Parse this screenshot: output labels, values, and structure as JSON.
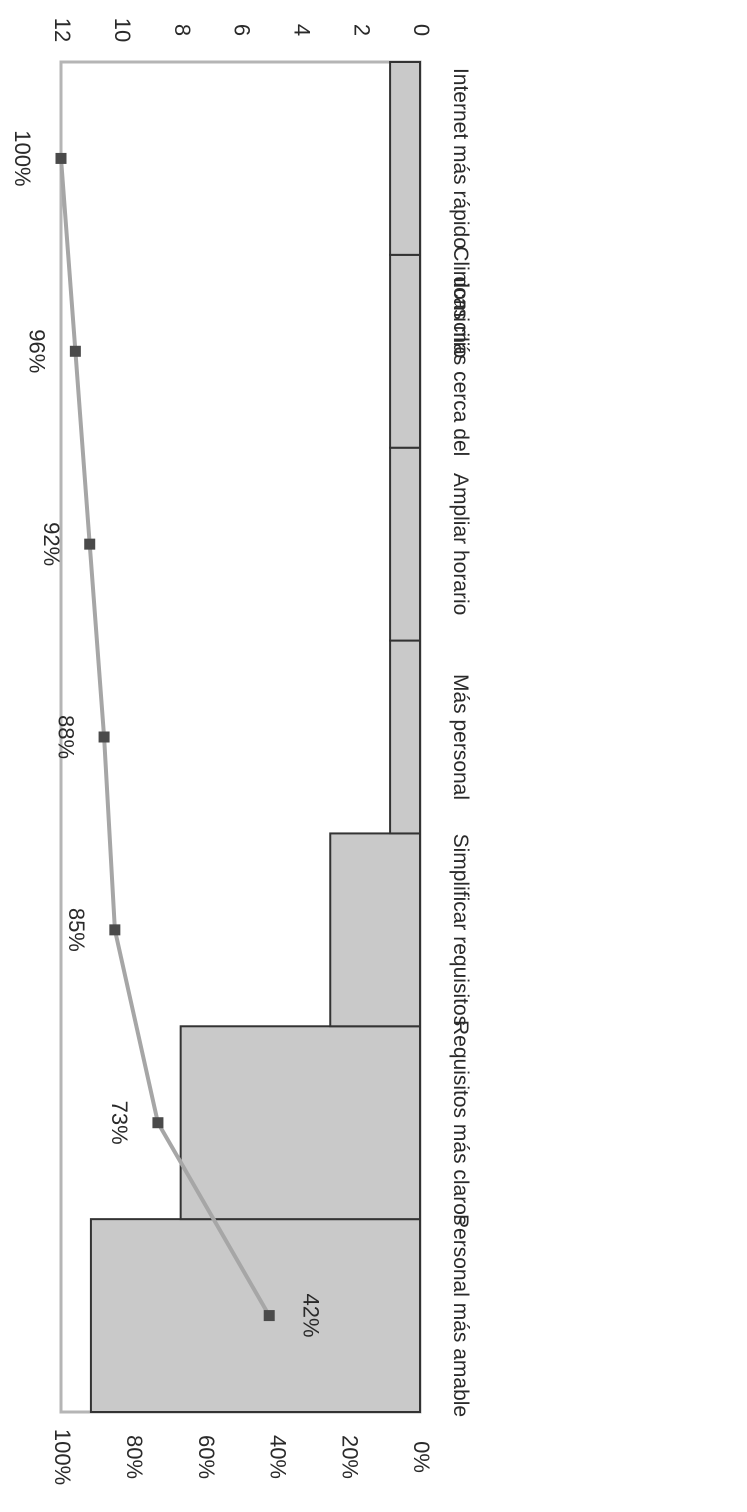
{
  "chart_data": {
    "type": "bar",
    "orientation": "rotated 180 degrees",
    "categories": [
      "Personal más amable",
      "Requisitos más claros",
      "Simplificar requisitos",
      "Más personal",
      "Ampliar horario",
      "Clinicas más cerca del domicilio",
      "Internet más rápido"
    ],
    "series": [
      {
        "type": "bar",
        "values": [
          11,
          8,
          3,
          1,
          1,
          1,
          1
        ]
      },
      {
        "type": "line",
        "values": [
          42,
          73,
          85,
          88,
          92,
          96,
          100
        ]
      }
    ],
    "data_labels": [
      "42%",
      "73%",
      "85%",
      "88%",
      "92%",
      "96%",
      "100%"
    ],
    "left_axis": {
      "range": [
        0,
        12
      ],
      "ticks": [
        "0",
        "2",
        "4",
        "6",
        "8",
        "10",
        "12"
      ]
    },
    "right_axis": {
      "range": [
        0,
        100
      ],
      "ticks": [
        "0%",
        "20%",
        "40%",
        "60%",
        "80%",
        "100%"
      ]
    },
    "colors": {
      "bar_fill": "#c9c9c9",
      "bar_stroke": "#333333",
      "line": "#a6a6a6",
      "marker": "#4a4a4a",
      "plot_border": "#b5b5b5"
    },
    "grid": false,
    "legend": "none"
  }
}
